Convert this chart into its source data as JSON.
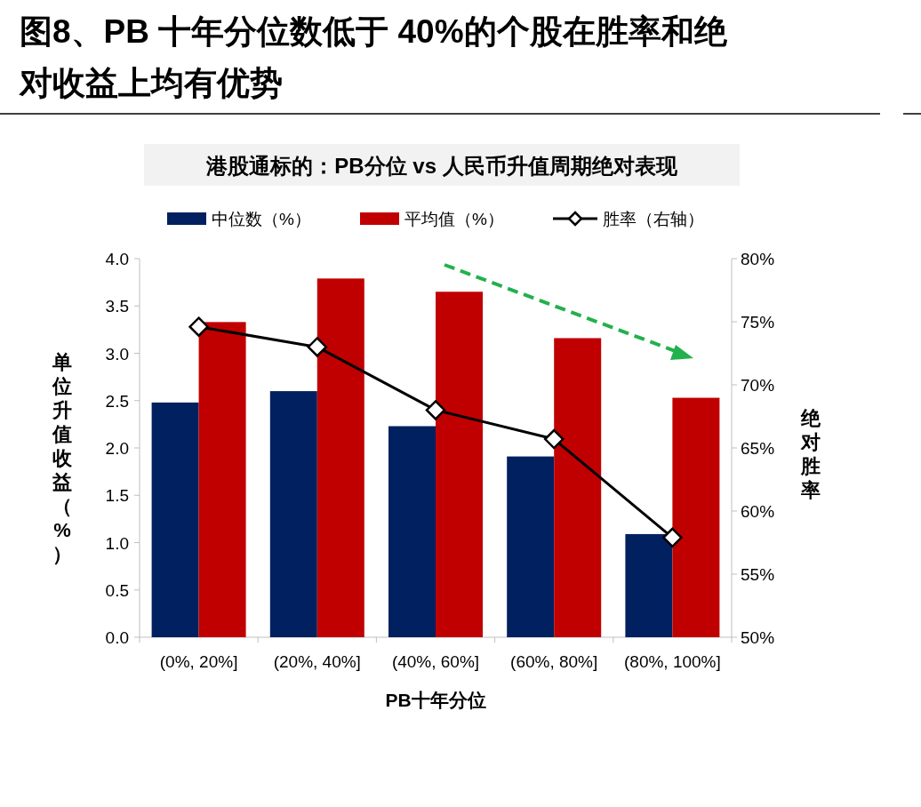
{
  "chart_data": {
    "type": "bar",
    "title": "图8、PB 十年分位数低于 40%的个股在胜率和绝对收益上均有优势",
    "subtitle": "港股通标的：PB分位 vs 人民币升值周期绝对表现",
    "xlabel": "PB十年分位",
    "ylabel": "单位升值收益（%）",
    "y2label": "绝对胜率",
    "categories": [
      "(0%, 20%]",
      "(20%, 40%]",
      "(40%, 60%]",
      "(60%, 80%]",
      "(80%, 100%]"
    ],
    "series": [
      {
        "name": "中位数（%）",
        "color": "#002060",
        "values": [
          2.48,
          2.6,
          2.23,
          1.91,
          1.09
        ]
      },
      {
        "name": "平均值（%）",
        "color": "#c00000",
        "values": [
          3.33,
          3.79,
          3.65,
          3.16,
          2.53
        ]
      },
      {
        "name": "胜率（右轴）",
        "type": "line",
        "axis": "y2",
        "color": "#000000",
        "marker": "diamond",
        "values": [
          74.6,
          73.0,
          68.0,
          65.7,
          57.9
        ]
      }
    ],
    "ylim": [
      0,
      4
    ],
    "yticks": [
      {
        "value": 0,
        "label": "0.0"
      },
      {
        "value": 0.5,
        "label": "0.5"
      },
      {
        "value": 1,
        "label": "1.0"
      },
      {
        "value": 1.5,
        "label": "1.5"
      },
      {
        "value": 2,
        "label": "2.0"
      },
      {
        "value": 2.5,
        "label": "2.5"
      },
      {
        "value": 3,
        "label": "3.0"
      },
      {
        "value": 3.5,
        "label": "3.5"
      },
      {
        "value": 4,
        "label": "4.0"
      }
    ],
    "y2lim": [
      50,
      80
    ],
    "y2ticks": [
      {
        "value": 50,
        "label": "50%"
      },
      {
        "value": 55,
        "label": "55%"
      },
      {
        "value": 60,
        "label": "60%"
      },
      {
        "value": 65,
        "label": "65%"
      },
      {
        "value": 70,
        "label": "70%"
      },
      {
        "value": 75,
        "label": "75%"
      },
      {
        "value": 80,
        "label": "80%"
      }
    ],
    "legend": "top",
    "grid": false
  }
}
